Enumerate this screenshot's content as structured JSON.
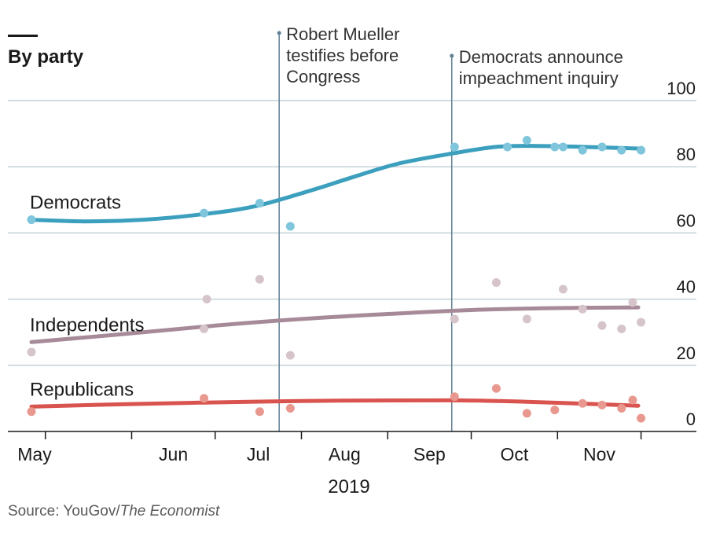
{
  "chart_data": {
    "type": "line",
    "title": "By party",
    "ylim": [
      0,
      100
    ],
    "yticks": [
      0,
      20,
      40,
      60,
      80,
      100
    ],
    "xlabel": "2019",
    "x_range": [
      "2019-04-26",
      "2019-11-30"
    ],
    "month_ticks": [
      {
        "label": "May",
        "date": "2019-05-01"
      },
      {
        "label": "Jun",
        "date": "2019-06-01"
      },
      {
        "label": "Jul",
        "date": "2019-07-01"
      },
      {
        "label": "Aug",
        "date": "2019-08-01"
      },
      {
        "label": "Sep",
        "date": "2019-09-01"
      },
      {
        "label": "Oct",
        "date": "2019-10-01"
      },
      {
        "label": "Nov",
        "date": "2019-11-01"
      },
      {
        "label": "",
        "date": "2019-12-01"
      }
    ],
    "grid": true,
    "events": [
      {
        "date": "2019-07-24",
        "lines": [
          "Robert Mueller",
          "testifies before",
          "Congress"
        ]
      },
      {
        "date": "2019-09-24",
        "lines": [
          "Democrats announce",
          "impeachment inquiry"
        ]
      }
    ],
    "series": [
      {
        "name": "Democrats",
        "color": "#3b9fbd",
        "dot_color": "#7fc6dc",
        "trend": [
          {
            "x": "2019-04-26",
            "y": 64
          },
          {
            "x": "2019-05-15",
            "y": 63.5
          },
          {
            "x": "2019-06-05",
            "y": 64
          },
          {
            "x": "2019-06-25",
            "y": 65.5
          },
          {
            "x": "2019-07-15",
            "y": 68
          },
          {
            "x": "2019-08-05",
            "y": 73
          },
          {
            "x": "2019-08-20",
            "y": 77
          },
          {
            "x": "2019-09-05",
            "y": 81
          },
          {
            "x": "2019-09-24",
            "y": 84
          },
          {
            "x": "2019-10-10",
            "y": 86
          },
          {
            "x": "2019-10-25",
            "y": 86.3
          },
          {
            "x": "2019-11-10",
            "y": 86
          },
          {
            "x": "2019-11-30",
            "y": 85.5
          }
        ],
        "points": [
          {
            "x": "2019-04-26",
            "y": 64
          },
          {
            "x": "2019-06-27",
            "y": 66
          },
          {
            "x": "2019-07-17",
            "y": 69
          },
          {
            "x": "2019-07-28",
            "y": 62
          },
          {
            "x": "2019-09-25",
            "y": 86
          },
          {
            "x": "2019-10-21",
            "y": 88
          },
          {
            "x": "2019-10-31",
            "y": 86
          },
          {
            "x": "2019-11-10",
            "y": 85
          },
          {
            "x": "2019-11-24",
            "y": 85
          },
          {
            "x": "2019-11-03",
            "y": 86
          },
          {
            "x": "2019-11-17",
            "y": 86
          },
          {
            "x": "2019-12-01",
            "y": 85
          },
          {
            "x": "2019-10-14",
            "y": 86
          }
        ]
      },
      {
        "name": "Independents",
        "color": "#a78a98",
        "dot_color": "#d6c4cb",
        "trend": [
          {
            "x": "2019-04-26",
            "y": 27
          },
          {
            "x": "2019-05-30",
            "y": 29.5
          },
          {
            "x": "2019-07-01",
            "y": 32
          },
          {
            "x": "2019-08-01",
            "y": 34
          },
          {
            "x": "2019-09-01",
            "y": 35.5
          },
          {
            "x": "2019-10-01",
            "y": 36.7
          },
          {
            "x": "2019-11-01",
            "y": 37.3
          },
          {
            "x": "2019-11-30",
            "y": 37.5
          }
        ],
        "points": [
          {
            "x": "2019-04-26",
            "y": 24
          },
          {
            "x": "2019-06-27",
            "y": 31
          },
          {
            "x": "2019-06-28",
            "y": 40
          },
          {
            "x": "2019-07-17",
            "y": 46
          },
          {
            "x": "2019-07-28",
            "y": 23
          },
          {
            "x": "2019-09-25",
            "y": 34
          },
          {
            "x": "2019-10-10",
            "y": 45
          },
          {
            "x": "2019-10-21",
            "y": 34
          },
          {
            "x": "2019-11-03",
            "y": 43
          },
          {
            "x": "2019-11-10",
            "y": 37
          },
          {
            "x": "2019-11-17",
            "y": 32
          },
          {
            "x": "2019-11-24",
            "y": 31
          },
          {
            "x": "2019-11-28",
            "y": 39
          },
          {
            "x": "2019-12-01",
            "y": 33
          }
        ]
      },
      {
        "name": "Republicans",
        "color": "#d9534f",
        "dot_color": "#e8988f",
        "trend": [
          {
            "x": "2019-04-26",
            "y": 7.5
          },
          {
            "x": "2019-06-01",
            "y": 8.3
          },
          {
            "x": "2019-07-15",
            "y": 9
          },
          {
            "x": "2019-08-15",
            "y": 9.3
          },
          {
            "x": "2019-09-24",
            "y": 9.4
          },
          {
            "x": "2019-10-20",
            "y": 9.0
          },
          {
            "x": "2019-11-10",
            "y": 8.4
          },
          {
            "x": "2019-11-30",
            "y": 7.8
          }
        ],
        "points": [
          {
            "x": "2019-04-26",
            "y": 6
          },
          {
            "x": "2019-06-27",
            "y": 10
          },
          {
            "x": "2019-07-17",
            "y": 6
          },
          {
            "x": "2019-07-28",
            "y": 7
          },
          {
            "x": "2019-09-25",
            "y": 10.5
          },
          {
            "x": "2019-10-10",
            "y": 13
          },
          {
            "x": "2019-10-21",
            "y": 5.5
          },
          {
            "x": "2019-10-31",
            "y": 6.5
          },
          {
            "x": "2019-11-10",
            "y": 8.5
          },
          {
            "x": "2019-11-17",
            "y": 8
          },
          {
            "x": "2019-11-24",
            "y": 7
          },
          {
            "x": "2019-11-28",
            "y": 9.5
          },
          {
            "x": "2019-12-01",
            "y": 4
          }
        ]
      }
    ]
  },
  "source": {
    "prefix": "Source: YouGov/",
    "publication": "The Economist"
  }
}
